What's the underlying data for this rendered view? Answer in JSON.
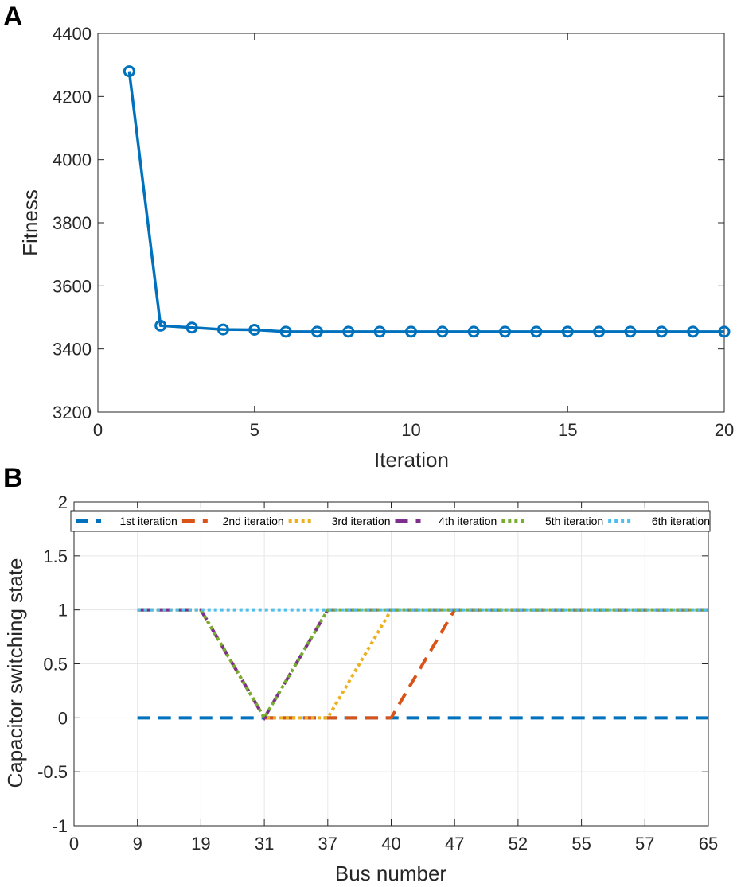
{
  "chart_data": [
    {
      "panel": "A",
      "type": "line",
      "title": "",
      "xlabel": "Iteration",
      "ylabel": "Fitness",
      "xlim": [
        0,
        20
      ],
      "ylim": [
        3200,
        4400
      ],
      "xticks": [
        0,
        5,
        10,
        15,
        20
      ],
      "yticks": [
        3200,
        3400,
        3600,
        3800,
        4000,
        4200,
        4400
      ],
      "xtick_labels": [
        "0",
        "5",
        "10",
        "15",
        "20"
      ],
      "ytick_labels": [
        "3200",
        "3400",
        "3600",
        "3800",
        "4000",
        "4200",
        "4400"
      ],
      "grid": false,
      "series": [
        {
          "name": "Fitness",
          "color": "#0072BD",
          "marker": "circle",
          "x": [
            1,
            2,
            3,
            4,
            5,
            6,
            7,
            8,
            9,
            10,
            11,
            12,
            13,
            14,
            15,
            16,
            17,
            18,
            19,
            20
          ],
          "values": [
            4280,
            3474,
            3468,
            3462,
            3461,
            3455,
            3455,
            3455,
            3455,
            3455,
            3455,
            3455,
            3455,
            3455,
            3455,
            3455,
            3455,
            3455,
            3455,
            3455
          ]
        }
      ]
    },
    {
      "panel": "B",
      "type": "line",
      "title": "",
      "xlabel": "Bus number",
      "ylabel": "Capacitor switching state",
      "ylim": [
        -1,
        2
      ],
      "yticks": [
        -1,
        -0.5,
        0,
        0.5,
        1,
        1.5,
        2
      ],
      "ytick_labels": [
        "-1",
        "-0.5",
        "0",
        "0.5",
        "1",
        "1.5",
        "2"
      ],
      "categories": [
        "0",
        "9",
        "19",
        "31",
        "37",
        "40",
        "47",
        "52",
        "55",
        "57",
        "65"
      ],
      "grid": true,
      "legend_position": "top",
      "series": [
        {
          "name": "1st iteration",
          "color": "#0072BD",
          "style": "dashed",
          "values": [
            null,
            0,
            0,
            0,
            0,
            0,
            0,
            0,
            0,
            0,
            0
          ]
        },
        {
          "name": "2nd iteration",
          "color": "#D95319",
          "style": "dashed",
          "values": [
            null,
            1,
            1,
            0,
            0,
            0,
            1,
            1,
            1,
            1,
            1
          ]
        },
        {
          "name": "3rd iteration",
          "color": "#EDB120",
          "style": "dotted",
          "values": [
            null,
            1,
            1,
            0,
            0,
            1,
            1,
            1,
            1,
            1,
            1
          ]
        },
        {
          "name": "4th iteration",
          "color": "#7E2F8E",
          "style": "dashed",
          "values": [
            null,
            1,
            1,
            0,
            1,
            1,
            1,
            1,
            1,
            1,
            1
          ]
        },
        {
          "name": "5th iteration",
          "color": "#77AC30",
          "style": "dotted",
          "values": [
            null,
            1,
            1,
            0,
            1,
            1,
            1,
            1,
            1,
            1,
            1
          ]
        },
        {
          "name": "6th iteration",
          "color": "#4DBEEE",
          "style": "dotted",
          "values": [
            null,
            1,
            1,
            1,
            1,
            1,
            1,
            1,
            1,
            1,
            1
          ]
        }
      ]
    }
  ]
}
